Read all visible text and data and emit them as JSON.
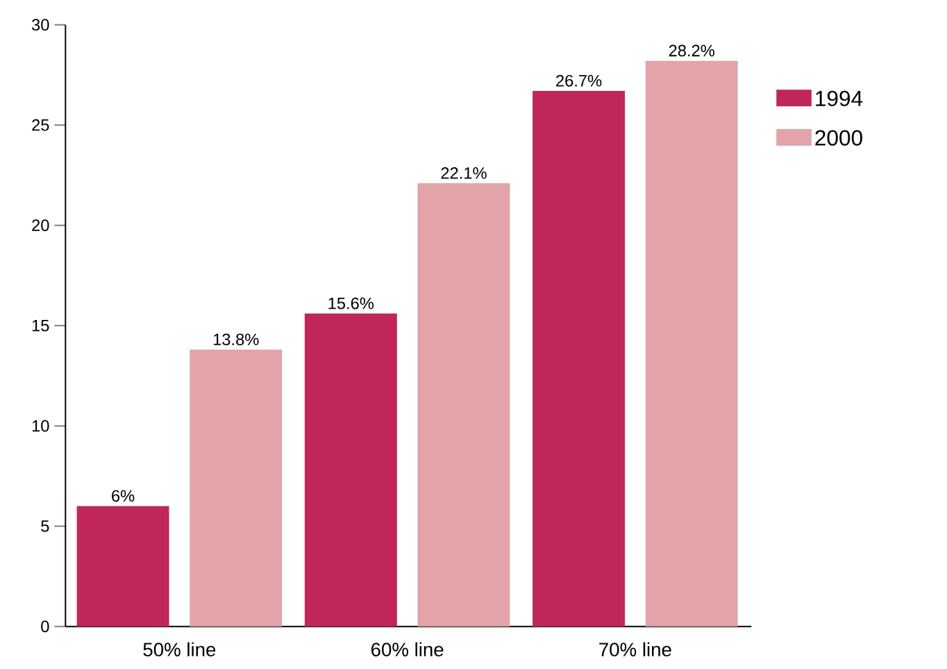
{
  "chart_data": {
    "type": "bar",
    "categories": [
      "50% line",
      "60% line",
      "70% line"
    ],
    "series": [
      {
        "name": "1994",
        "color": "#c0265a",
        "values": [
          6,
          15.6,
          26.7
        ],
        "value_labels": [
          "6%",
          "15.6%",
          "26.7%"
        ]
      },
      {
        "name": "2000",
        "color": "#e2a4a8",
        "values": [
          13.8,
          22.1,
          28.2
        ],
        "value_labels": [
          "13.8%",
          "22.1%",
          "28.2%"
        ]
      }
    ],
    "ylim": [
      0,
      30
    ],
    "yticks": [
      0,
      5,
      10,
      15,
      20,
      25,
      30
    ],
    "grid": false,
    "legend": "right"
  }
}
